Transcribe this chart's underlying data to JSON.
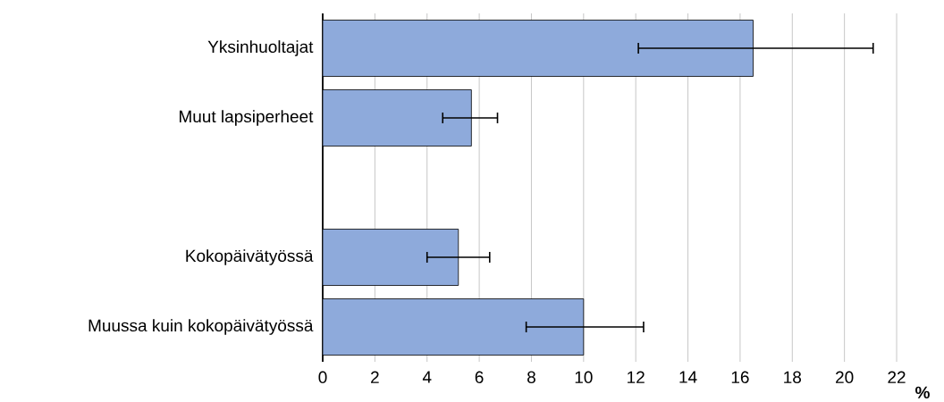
{
  "chart_data": {
    "type": "bar",
    "orientation": "horizontal",
    "categories": [
      "Yksinhuoltajat",
      "Muut lapsiperheet",
      null,
      "Kokopäivätyössä",
      "Muussa kuin kokopäivätyössä"
    ],
    "values": [
      16.5,
      5.7,
      null,
      5.2,
      10.0
    ],
    "errors": [
      [
        12.1,
        21.1
      ],
      [
        4.6,
        6.7
      ],
      null,
      [
        4.0,
        6.4
      ],
      [
        7.8,
        12.3
      ]
    ],
    "color": "#8eaadb",
    "xlim": [
      0,
      22
    ],
    "xticks": [
      0,
      2,
      4,
      6,
      8,
      10,
      12,
      14,
      16,
      18,
      20,
      22
    ],
    "xlabel": "%",
    "grid": "x"
  }
}
